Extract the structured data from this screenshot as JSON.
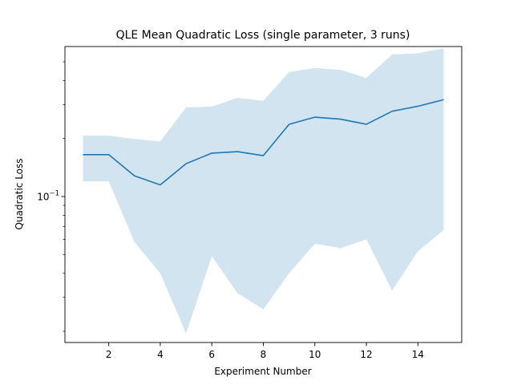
{
  "chart_data": {
    "type": "line",
    "title": "QLE Mean Quadratic Loss (single parameter, 3 runs)",
    "xlabel": "Experiment Number",
    "ylabel": "Quadratic Loss",
    "yscale": "log",
    "xlim": [
      0.3,
      15.7
    ],
    "ylim": [
      0.0175,
      0.6
    ],
    "xticks": [
      2,
      4,
      6,
      8,
      10,
      12,
      14
    ],
    "xtick_labels": [
      "2",
      "4",
      "6",
      "8",
      "10",
      "12",
      "14"
    ],
    "yticks_major": [
      0.1
    ],
    "ytick_major_base": "10",
    "ytick_major_exponent": "−1",
    "yticks_minor": [
      0.02,
      0.03,
      0.04,
      0.05,
      0.06,
      0.07,
      0.08,
      0.09,
      0.2,
      0.3,
      0.4,
      0.5
    ],
    "grid": false,
    "legend": "none",
    "x": [
      1,
      2,
      3,
      4,
      5,
      6,
      7,
      8,
      9,
      10,
      11,
      12,
      13,
      14,
      15
    ],
    "series": [
      {
        "color": "#1f77b4",
        "values": [
          0.165,
          0.165,
          0.128,
          0.115,
          0.148,
          0.168,
          0.171,
          0.163,
          0.237,
          0.258,
          0.252,
          0.237,
          0.277,
          0.294,
          0.318
        ],
        "band_lower": [
          0.12,
          0.12,
          0.058,
          0.04,
          0.0195,
          0.049,
          0.0315,
          0.026,
          0.04,
          0.057,
          0.054,
          0.06,
          0.0325,
          0.052,
          0.067
        ],
        "band_upper": [
          0.207,
          0.207,
          0.199,
          0.193,
          0.29,
          0.293,
          0.325,
          0.314,
          0.442,
          0.464,
          0.454,
          0.413,
          0.545,
          0.554,
          0.587
        ],
        "band_color": "#1f77b4",
        "band_opacity": 0.2
      }
    ]
  }
}
